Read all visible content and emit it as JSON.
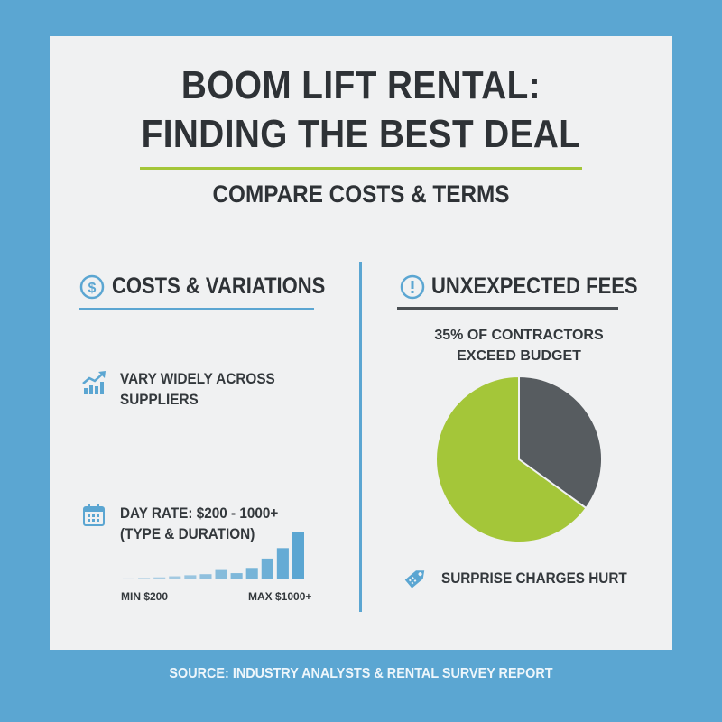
{
  "title_line1": "BOOM LIFT RENTAL:",
  "title_line2": "FINDING THE BEST DEAL",
  "subtitle": "COMPARE COSTS & TERMS",
  "left": {
    "heading": "COSTS & VARIATIONS",
    "heading_icon": "dollar-circle-icon",
    "item1": {
      "icon": "trending-chart-icon",
      "line1": "VARY WIDELY ACROSS",
      "line2": "SUPPLIERS"
    },
    "item2": {
      "icon": "calendar-icon",
      "line1": "DAY RATE: $200 - 1000+",
      "line2": "(TYPE & DURATION)"
    },
    "min_label": "MIN $200",
    "max_label": "MAX $1000+"
  },
  "right": {
    "heading": "UNXEXPECTED FEES",
    "heading_icon": "exclamation-circle-icon",
    "stat_line1": "35% OF CONTRACTORS",
    "stat_line2": "EXCEED BUDGET",
    "footer_icon": "price-tag-icon",
    "footer_text": "SURPRISE CHARGES HURT"
  },
  "source": "SOURCE: INDUSTRY ANALYSTS & RENTAL SURVEY REPORT",
  "colors": {
    "background": "#5ba6d2",
    "accent_green": "#a4c639",
    "accent_blue": "#5ba6d2",
    "dark": "#575c60"
  },
  "chart_data": [
    {
      "type": "bar",
      "values": [
        1,
        1.5,
        2,
        3,
        4,
        5,
        9,
        6,
        11,
        20,
        30,
        45
      ],
      "color": "#5ba6d2"
    },
    {
      "type": "pie",
      "slices": [
        {
          "value": 35,
          "color": "#575c60"
        },
        {
          "value": 65,
          "color": "#a4c639"
        }
      ]
    }
  ]
}
